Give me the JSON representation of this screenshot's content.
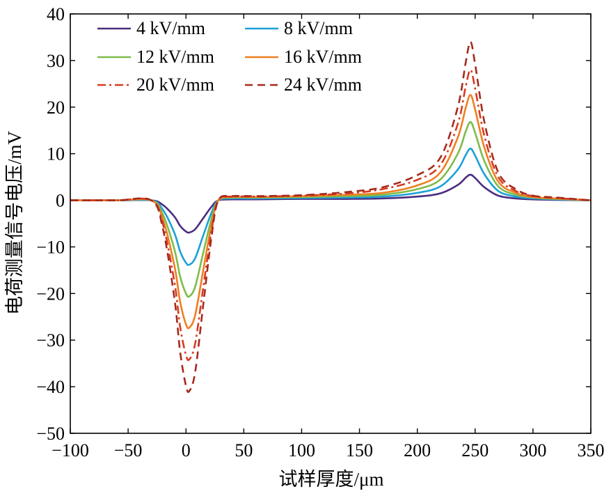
{
  "chart_data": {
    "type": "line",
    "title": "",
    "xlabel": "试样厚度/μm",
    "ylabel": "电荷测量信号电压/mV",
    "xlim": [
      -100,
      350
    ],
    "ylim": [
      -50,
      40
    ],
    "xticks": [
      -100,
      -50,
      0,
      50,
      100,
      150,
      200,
      250,
      300,
      350
    ],
    "yticks": [
      -50,
      -40,
      -30,
      -20,
      -10,
      0,
      10,
      20,
      30,
      40
    ],
    "xtick_labels": [
      "−100",
      "−50",
      "0",
      "50",
      "100",
      "150",
      "200",
      "250",
      "300",
      "350"
    ],
    "ytick_labels": [
      "−50",
      "−40",
      "−30",
      "−20",
      "−10",
      "0",
      "10",
      "20",
      "30",
      "40"
    ],
    "grid": false,
    "legend_position": "top-left",
    "x": [
      -100,
      -60,
      -30,
      -20,
      -10,
      -5,
      0,
      3,
      8,
      15,
      22,
      28,
      40,
      60,
      100,
      140,
      170,
      200,
      220,
      235,
      242,
      246,
      250,
      258,
      270,
      285,
      300,
      320,
      350
    ],
    "series": [
      {
        "name": "4 kV/mm",
        "color": "#4b2c7f",
        "style": "solid",
        "values": [
          0,
          0,
          0,
          -1.0,
          -3.5,
          -5.5,
          -6.7,
          -6.9,
          -6.2,
          -3.8,
          -1.4,
          0,
          0.2,
          0.2,
          0.3,
          0.3,
          0.4,
          0.8,
          1.5,
          3.3,
          4.9,
          5.5,
          4.8,
          2.8,
          1.0,
          0.4,
          0.2,
          0.1,
          0
        ]
      },
      {
        "name": "8 kV/mm",
        "color": "#1ba0d8",
        "style": "solid",
        "values": [
          0,
          0,
          0,
          -2.0,
          -7.0,
          -11.0,
          -13.4,
          -13.8,
          -12.4,
          -7.5,
          -2.7,
          0,
          0.4,
          0.4,
          0.5,
          0.6,
          0.8,
          1.6,
          3.0,
          6.6,
          9.8,
          11.1,
          9.6,
          5.6,
          2.0,
          0.8,
          0.4,
          0.2,
          0
        ]
      },
      {
        "name": "12 kV/mm",
        "color": "#7dbc4a",
        "style": "solid",
        "values": [
          0,
          0,
          0,
          -3.0,
          -10.5,
          -16.4,
          -20.0,
          -20.6,
          -18.5,
          -11.2,
          -4.0,
          0,
          0.6,
          0.6,
          0.7,
          0.9,
          1.2,
          2.4,
          4.5,
          10.0,
          14.9,
          16.8,
          14.5,
          8.4,
          3.0,
          1.2,
          0.6,
          0.3,
          0
        ]
      },
      {
        "name": "16 kV/mm",
        "color": "#ef7f22",
        "style": "solid",
        "values": [
          0,
          0,
          0,
          -4.0,
          -14.0,
          -21.8,
          -26.6,
          -27.3,
          -24.6,
          -14.9,
          -5.4,
          0,
          0.7,
          0.7,
          0.9,
          1.2,
          1.6,
          3.2,
          6.0,
          13.5,
          20.0,
          22.6,
          19.5,
          11.3,
          4.0,
          1.6,
          0.7,
          0.4,
          0
        ]
      },
      {
        "name": "20 kV/mm",
        "color": "#d83b20",
        "style": "dashdot",
        "values": [
          0,
          0,
          0,
          -5.0,
          -17.5,
          -27.2,
          -33.2,
          -34.1,
          -30.7,
          -18.6,
          -6.7,
          0,
          0.8,
          0.8,
          1.0,
          1.5,
          2.4,
          4.4,
          7.6,
          16.4,
          24.6,
          28.0,
          24.0,
          13.8,
          5.0,
          2.0,
          0.9,
          0.5,
          0
        ]
      },
      {
        "name": "24 kV/mm",
        "color": "#a52a1c",
        "style": "dashed",
        "values": [
          0,
          0,
          0,
          -6.0,
          -21.0,
          -32.6,
          -39.8,
          -40.9,
          -36.8,
          -22.3,
          -8.0,
          0,
          0.9,
          0.9,
          1.1,
          1.8,
          2.8,
          5.4,
          9.2,
          20.0,
          29.8,
          34.0,
          29.2,
          16.8,
          6.0,
          2.4,
          1.0,
          0.6,
          0
        ]
      }
    ]
  }
}
